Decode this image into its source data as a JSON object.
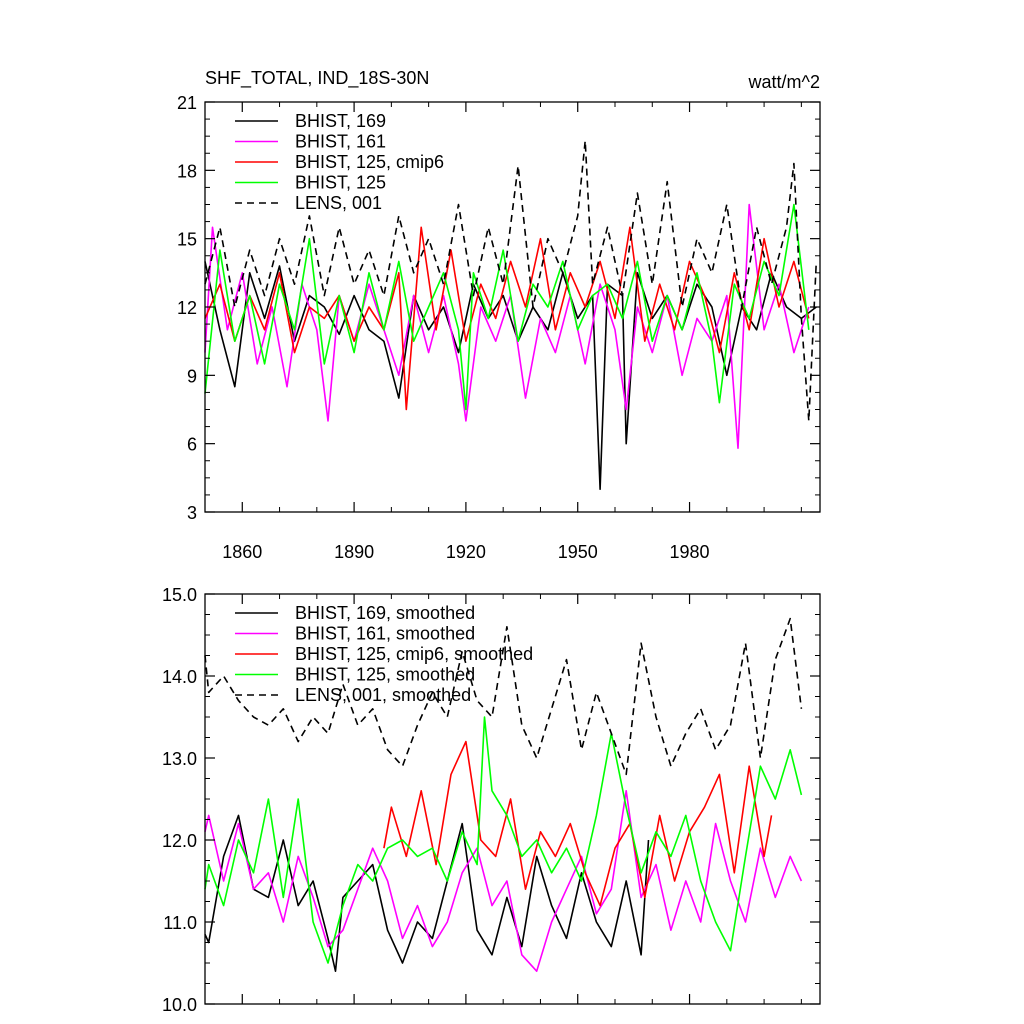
{
  "chart_data": [
    {
      "type": "line",
      "title_left": "SHF_TOTAL, IND_18S-30N",
      "title_right": "watt/m^2",
      "xlim": [
        1850,
        2015
      ],
      "ylim": [
        3,
        21
      ],
      "yticks": [
        "3",
        "6",
        "9",
        "12",
        "15",
        "18",
        "21"
      ],
      "ytick_values": [
        3,
        6,
        9,
        12,
        15,
        18,
        21
      ],
      "xticks": [
        "1860",
        "1890",
        "1920",
        "1950",
        "1980"
      ],
      "xtick_values": [
        1860,
        1890,
        1920,
        1950,
        1980
      ],
      "series": [
        {
          "name": "BHIST, 169",
          "color": "#000000",
          "dash": "solid",
          "x": [
            1850,
            1854,
            1858,
            1862,
            1866,
            1870,
            1874,
            1878,
            1882,
            1886,
            1890,
            1894,
            1898,
            1902,
            1906,
            1910,
            1914,
            1918,
            1922,
            1926,
            1930,
            1934,
            1938,
            1942,
            1946,
            1950,
            1954,
            1956,
            1958,
            1962,
            1963,
            1966,
            1970,
            1974,
            1978,
            1982,
            1986,
            1990,
            1994,
            1998,
            2002,
            2006,
            2010,
            2014
          ],
          "values": [
            14.0,
            11.0,
            8.5,
            13.5,
            11.5,
            13.8,
            10.5,
            12.5,
            12.0,
            10.8,
            12.5,
            11.0,
            10.5,
            8.0,
            12.5,
            11.0,
            12.0,
            10.0,
            13.0,
            11.5,
            12.5,
            10.5,
            12.0,
            11.0,
            13.5,
            11.5,
            12.5,
            4.0,
            13.0,
            12.5,
            6.0,
            13.5,
            11.5,
            12.5,
            11.0,
            13.0,
            12.0,
            9.0,
            12.0,
            11.0,
            13.5,
            12.0,
            11.5,
            12.0
          ]
        },
        {
          "name": "BHIST, 161",
          "color": "#ff00ff",
          "dash": "solid",
          "x": [
            1850,
            1852,
            1856,
            1860,
            1864,
            1868,
            1872,
            1876,
            1880,
            1883,
            1886,
            1890,
            1894,
            1898,
            1902,
            1906,
            1910,
            1914,
            1918,
            1920,
            1924,
            1928,
            1932,
            1936,
            1940,
            1944,
            1948,
            1952,
            1956,
            1960,
            1963,
            1966,
            1970,
            1974,
            1978,
            1982,
            1986,
            1990,
            1993,
            1996,
            2000,
            2004,
            2008,
            2012
          ],
          "values": [
            10.0,
            15.5,
            11.0,
            13.5,
            9.5,
            12.0,
            8.5,
            13.0,
            11.0,
            7.0,
            12.5,
            10.5,
            13.0,
            11.0,
            9.0,
            12.5,
            10.0,
            12.5,
            9.5,
            7.0,
            12.0,
            10.5,
            12.5,
            8.0,
            11.5,
            10.0,
            12.5,
            9.5,
            13.0,
            11.0,
            7.5,
            12.0,
            10.0,
            12.5,
            9.0,
            11.5,
            10.5,
            12.5,
            5.8,
            16.5,
            11.0,
            13.0,
            10.0,
            12.0
          ]
        },
        {
          "name": "BHIST, 125, cmip6",
          "color": "#ff0000",
          "dash": "solid",
          "x": [
            1850,
            1854,
            1858,
            1862,
            1866,
            1870,
            1874,
            1878,
            1882,
            1886,
            1890,
            1894,
            1898,
            1902,
            1904,
            1908,
            1912,
            1916,
            1920,
            1924,
            1928,
            1932,
            1936,
            1940,
            1944,
            1948,
            1952,
            1956,
            1960,
            1964,
            1968,
            1972,
            1976,
            1980,
            1984,
            1988,
            1992,
            1996,
            2000,
            2004,
            2008,
            2012
          ],
          "values": [
            11.5,
            13.0,
            10.5,
            12.5,
            11.0,
            13.5,
            10.0,
            12.0,
            11.5,
            12.5,
            10.5,
            12.0,
            11.0,
            13.5,
            7.5,
            15.5,
            11.0,
            14.5,
            10.5,
            13.0,
            11.5,
            14.0,
            12.0,
            15.0,
            11.0,
            13.5,
            12.0,
            14.0,
            11.5,
            15.5,
            10.5,
            13.0,
            11.0,
            14.0,
            12.5,
            10.0,
            13.5,
            11.0,
            15.0,
            12.0,
            14.0,
            11.5
          ]
        },
        {
          "name": "BHIST, 125",
          "color": "#00ff00",
          "dash": "solid",
          "x": [
            1850,
            1854,
            1858,
            1862,
            1866,
            1870,
            1874,
            1878,
            1882,
            1886,
            1890,
            1894,
            1898,
            1902,
            1906,
            1910,
            1914,
            1918,
            1920,
            1922,
            1926,
            1930,
            1934,
            1938,
            1942,
            1946,
            1950,
            1954,
            1958,
            1962,
            1966,
            1970,
            1974,
            1978,
            1982,
            1986,
            1988,
            1992,
            1996,
            2000,
            2004,
            2008,
            2012
          ],
          "values": [
            8.2,
            14.5,
            10.5,
            12.5,
            9.5,
            13.0,
            11.0,
            15.0,
            9.5,
            12.5,
            10.0,
            13.5,
            11.0,
            14.0,
            10.5,
            12.0,
            13.5,
            11.0,
            7.5,
            13.5,
            11.5,
            14.5,
            10.5,
            13.0,
            12.0,
            14.0,
            11.0,
            12.5,
            13.0,
            11.5,
            14.0,
            10.5,
            12.5,
            11.0,
            13.5,
            10.5,
            7.8,
            13.0,
            11.5,
            14.0,
            12.5,
            16.5,
            11.0
          ]
        },
        {
          "name": "LENS, 001",
          "color": "#000000",
          "dash": "dashed",
          "x": [
            1850,
            1854,
            1858,
            1862,
            1866,
            1870,
            1874,
            1878,
            1882,
            1886,
            1890,
            1894,
            1898,
            1902,
            1906,
            1910,
            1914,
            1918,
            1922,
            1926,
            1930,
            1934,
            1938,
            1942,
            1946,
            1950,
            1952,
            1954,
            1958,
            1962,
            1966,
            1970,
            1974,
            1978,
            1982,
            1986,
            1990,
            1994,
            1998,
            2002,
            2006,
            2008,
            2010,
            2012,
            2014
          ],
          "values": [
            13.0,
            15.5,
            12.0,
            14.5,
            12.5,
            15.0,
            13.0,
            16.0,
            12.5,
            15.5,
            13.0,
            14.5,
            12.5,
            16.0,
            13.5,
            15.0,
            13.0,
            16.5,
            12.5,
            15.5,
            13.0,
            18.2,
            12.0,
            15.0,
            13.5,
            16.0,
            19.3,
            13.0,
            15.5,
            12.5,
            17.0,
            13.0,
            17.5,
            12.0,
            15.0,
            13.5,
            16.5,
            12.0,
            15.5,
            13.0,
            15.5,
            18.3,
            11.5,
            7.0,
            14.0
          ]
        }
      ]
    },
    {
      "type": "line",
      "xlim": [
        1850,
        2015
      ],
      "ylim": [
        10.0,
        15.0
      ],
      "yticks": [
        "10.0",
        "11.0",
        "12.0",
        "13.0",
        "14.0",
        "15.0"
      ],
      "ytick_values": [
        10.0,
        11.0,
        12.0,
        13.0,
        14.0,
        15.0
      ],
      "xticks": [],
      "xtick_values": [
        1860,
        1890,
        1920,
        1950,
        1980
      ],
      "series": [
        {
          "name": "BHIST, 169, smoothed",
          "color": "#000000",
          "dash": "solid",
          "x": [
            1850,
            1851,
            1855,
            1859,
            1863,
            1867,
            1871,
            1875,
            1879,
            1883,
            1885,
            1887,
            1891,
            1895,
            1899,
            1903,
            1907,
            1911,
            1915,
            1919,
            1923,
            1927,
            1931,
            1935,
            1939,
            1943,
            1947,
            1951,
            1955,
            1959,
            1963,
            1967,
            1969
          ],
          "values": [
            10.85,
            10.75,
            11.8,
            12.3,
            11.4,
            11.3,
            12.0,
            11.2,
            11.5,
            10.8,
            10.4,
            11.3,
            11.5,
            11.7,
            10.9,
            10.5,
            11.0,
            10.8,
            11.5,
            12.2,
            10.9,
            10.6,
            11.3,
            10.7,
            11.8,
            11.2,
            10.8,
            11.6,
            11.0,
            10.7,
            11.5,
            10.6,
            12.0
          ]
        },
        {
          "name": "BHIST, 161, smoothed",
          "color": "#ff00ff",
          "dash": "solid",
          "x": [
            1850,
            1851,
            1855,
            1859,
            1863,
            1867,
            1871,
            1875,
            1879,
            1883,
            1887,
            1891,
            1895,
            1899,
            1903,
            1907,
            1911,
            1915,
            1919,
            1923,
            1927,
            1931,
            1935,
            1939,
            1943,
            1947,
            1951,
            1955,
            1959,
            1963,
            1967,
            1971,
            1975,
            1979,
            1983,
            1987,
            1991,
            1995,
            1999,
            2003,
            2007,
            2010
          ],
          "values": [
            12.1,
            12.3,
            11.5,
            12.2,
            11.4,
            11.6,
            11.0,
            11.8,
            11.3,
            10.7,
            10.9,
            11.4,
            11.9,
            11.5,
            10.8,
            11.2,
            10.7,
            11.0,
            11.6,
            11.9,
            11.2,
            11.5,
            10.6,
            10.4,
            11.0,
            11.4,
            11.8,
            11.1,
            11.4,
            12.6,
            11.3,
            11.7,
            10.9,
            11.5,
            11.0,
            12.2,
            11.5,
            11.0,
            11.9,
            11.3,
            11.8,
            11.5
          ]
        },
        {
          "name": "BHIST, 125, cmip6, smoothed",
          "color": "#ff0000",
          "dash": "solid",
          "x": [
            1898,
            1900,
            1904,
            1908,
            1912,
            1916,
            1920,
            1924,
            1928,
            1932,
            1936,
            1940,
            1944,
            1948,
            1952,
            1956,
            1960,
            1964,
            1968,
            1972,
            1976,
            1980,
            1984,
            1988,
            1992,
            1996,
            2000,
            2002
          ],
          "values": [
            11.9,
            12.4,
            11.8,
            12.6,
            11.7,
            12.8,
            13.2,
            12.0,
            11.8,
            12.5,
            11.4,
            12.1,
            11.8,
            12.2,
            11.6,
            11.2,
            11.9,
            12.2,
            11.3,
            12.3,
            11.5,
            12.1,
            12.4,
            12.8,
            11.6,
            12.9,
            11.8,
            12.3
          ]
        },
        {
          "name": "BHIST, 125, smoothed",
          "color": "#00ff00",
          "dash": "solid",
          "x": [
            1850,
            1851,
            1855,
            1859,
            1863,
            1867,
            1871,
            1875,
            1879,
            1883,
            1887,
            1891,
            1895,
            1899,
            1903,
            1907,
            1911,
            1915,
            1919,
            1923,
            1925,
            1927,
            1931,
            1935,
            1939,
            1943,
            1947,
            1951,
            1955,
            1959,
            1963,
            1967,
            1971,
            1975,
            1979,
            1983,
            1987,
            1991,
            1995,
            1999,
            2003,
            2007,
            2010
          ],
          "values": [
            11.4,
            11.7,
            11.2,
            12.0,
            11.6,
            12.5,
            11.3,
            12.5,
            11.0,
            10.5,
            11.2,
            11.7,
            11.5,
            11.9,
            12.0,
            11.8,
            11.9,
            11.5,
            12.1,
            11.7,
            13.5,
            12.6,
            12.3,
            11.8,
            12.0,
            11.6,
            11.9,
            11.5,
            12.3,
            13.3,
            12.4,
            11.6,
            12.1,
            11.8,
            12.3,
            11.5,
            11.0,
            10.65,
            11.8,
            12.9,
            12.5,
            13.1,
            12.55
          ]
        },
        {
          "name": "LENS, 001, smoothed",
          "color": "#000000",
          "dash": "dashed",
          "x": [
            1850,
            1851,
            1855,
            1859,
            1863,
            1867,
            1871,
            1875,
            1879,
            1883,
            1887,
            1891,
            1895,
            1899,
            1903,
            1907,
            1911,
            1915,
            1919,
            1923,
            1927,
            1931,
            1935,
            1939,
            1943,
            1947,
            1951,
            1955,
            1959,
            1963,
            1967,
            1971,
            1975,
            1979,
            1983,
            1987,
            1991,
            1995,
            1999,
            2003,
            2007,
            2010
          ],
          "values": [
            14.25,
            13.8,
            14.0,
            13.7,
            13.5,
            13.4,
            13.6,
            13.2,
            13.5,
            13.3,
            13.9,
            13.4,
            13.6,
            13.1,
            12.9,
            13.4,
            13.8,
            13.5,
            14.3,
            13.7,
            13.5,
            14.6,
            13.4,
            13.0,
            13.6,
            14.2,
            13.1,
            13.8,
            13.3,
            12.8,
            14.4,
            13.5,
            12.9,
            13.3,
            13.6,
            13.1,
            13.4,
            14.4,
            13.0,
            14.2,
            14.7,
            13.6
          ]
        }
      ]
    }
  ]
}
